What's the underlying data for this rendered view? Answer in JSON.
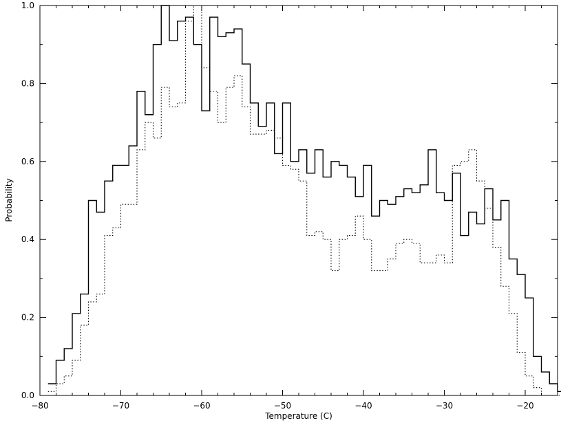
{
  "chart_data": {
    "type": "line",
    "style": "step histogram",
    "title": "",
    "xlabel": "Temperature (C)",
    "ylabel": "Probability",
    "xlim": [
      -80,
      -16
    ],
    "ylim": [
      0,
      1
    ],
    "xticks": [
      -80,
      -70,
      -60,
      -50,
      -40,
      -30,
      -20
    ],
    "xtick_labels": [
      "−80",
      "−70",
      "−60",
      "−50",
      "−40",
      "−30",
      "−20"
    ],
    "yticks": [
      0,
      0.2,
      0.4,
      0.6,
      0.8,
      1
    ],
    "ytick_labels": [
      "0.0",
      "0.2",
      "0.4",
      "0.6",
      "0.8",
      "1.0"
    ],
    "grid": false,
    "legend": "none",
    "bin_width": 1,
    "bin_start": -79,
    "series": [
      {
        "line_style": "solid",
        "values": [
          0.03,
          0.09,
          0.12,
          0.21,
          0.26,
          0.5,
          0.47,
          0.55,
          0.59,
          0.59,
          0.64,
          0.78,
          0.72,
          0.9,
          1.0,
          0.91,
          0.96,
          0.97,
          0.9,
          0.73,
          0.97,
          0.92,
          0.93,
          0.94,
          0.85,
          0.75,
          0.69,
          0.75,
          0.62,
          0.75,
          0.6,
          0.63,
          0.57,
          0.63,
          0.56,
          0.6,
          0.59,
          0.56,
          0.51,
          0.59,
          0.46,
          0.5,
          0.49,
          0.51,
          0.53,
          0.52,
          0.54,
          0.63,
          0.52,
          0.5,
          0.57,
          0.41,
          0.47,
          0.44,
          0.53,
          0.45,
          0.5,
          0.35,
          0.31,
          0.25,
          0.1,
          0.06,
          0.03,
          0.01
        ]
      },
      {
        "line_style": "dotted",
        "values": [
          0.01,
          0.03,
          0.05,
          0.09,
          0.18,
          0.24,
          0.26,
          0.41,
          0.43,
          0.49,
          0.49,
          0.63,
          0.7,
          0.66,
          0.79,
          0.74,
          0.75,
          0.96,
          1.0,
          0.84,
          0.78,
          0.7,
          0.79,
          0.82,
          0.74,
          0.67,
          0.67,
          0.68,
          0.66,
          0.59,
          0.58,
          0.55,
          0.41,
          0.42,
          0.4,
          0.32,
          0.4,
          0.41,
          0.46,
          0.4,
          0.32,
          0.32,
          0.35,
          0.39,
          0.4,
          0.39,
          0.34,
          0.34,
          0.36,
          0.34,
          0.59,
          0.6,
          0.63,
          0.55,
          0.48,
          0.38,
          0.28,
          0.21,
          0.11,
          0.05,
          0.02,
          0.0,
          0.0,
          0.0
        ]
      }
    ]
  }
}
